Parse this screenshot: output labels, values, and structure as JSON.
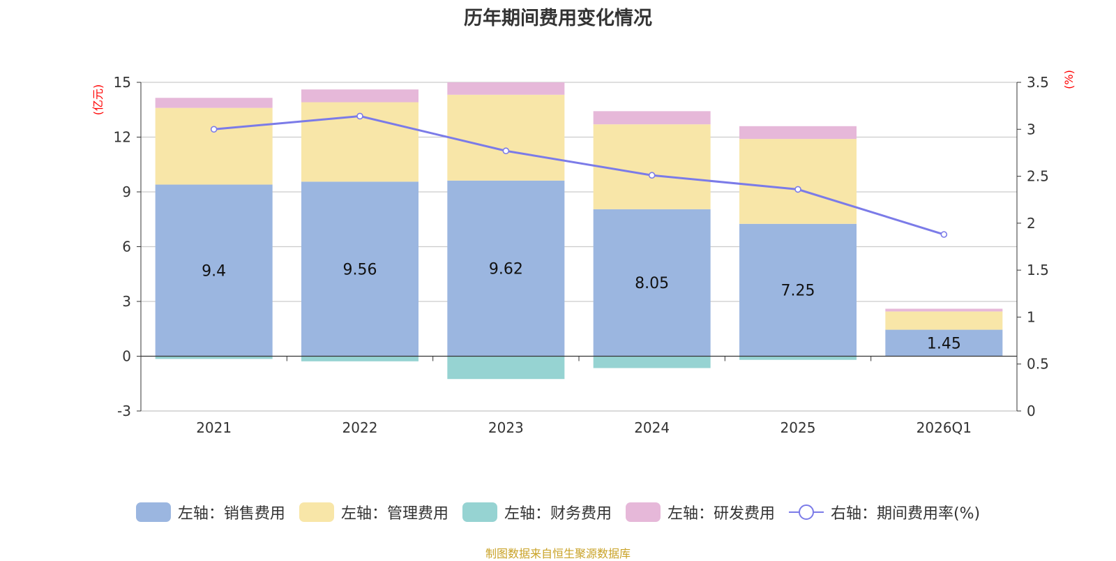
{
  "chart_data": {
    "type": "bar",
    "stacked": true,
    "title": "历年期间费用变化情况",
    "categories": [
      "2021",
      "2022",
      "2023",
      "2024",
      "2025",
      "2026Q1"
    ],
    "left_axis": {
      "unit": "(亿元)",
      "ylim": [
        -3,
        15
      ],
      "ticks": [
        -3,
        0,
        3,
        6,
        9,
        12,
        15
      ]
    },
    "right_axis": {
      "unit": "(%)",
      "ylim": [
        0,
        3.5
      ],
      "ticks": [
        0,
        0.5,
        1,
        1.5,
        2,
        2.5,
        3,
        3.5
      ]
    },
    "series": [
      {
        "name": "左轴：销售费用",
        "axis": "left",
        "kind": "bar",
        "color": "#9bb6e0",
        "values": [
          9.4,
          9.56,
          9.62,
          8.05,
          7.25,
          1.45
        ],
        "labels": [
          "9.4",
          "9.56",
          "9.62",
          "8.05",
          "7.25",
          "1.45"
        ]
      },
      {
        "name": "左轴：管理费用",
        "axis": "left",
        "kind": "bar",
        "color": "#f8e6a8",
        "values": [
          4.2,
          4.35,
          4.7,
          4.65,
          4.65,
          1.0
        ]
      },
      {
        "name": "左轴：财务费用",
        "axis": "left",
        "kind": "bar",
        "color": "#96d3d2",
        "values": [
          -0.15,
          -0.28,
          -1.25,
          -0.65,
          -0.2,
          -0.02
        ]
      },
      {
        "name": "左轴：研发费用",
        "axis": "left",
        "kind": "bar",
        "color": "#e6b8d9",
        "values": [
          0.55,
          0.7,
          0.68,
          0.72,
          0.7,
          0.15
        ]
      },
      {
        "name": "右轴：期间费用率(%)",
        "axis": "right",
        "kind": "line",
        "color": "#7b7be8",
        "values": [
          3.0,
          3.14,
          2.77,
          2.51,
          2.36,
          1.88
        ]
      }
    ],
    "legend_position": "bottom",
    "grid": true
  },
  "source_note": "制图数据来自恒生聚源数据库"
}
